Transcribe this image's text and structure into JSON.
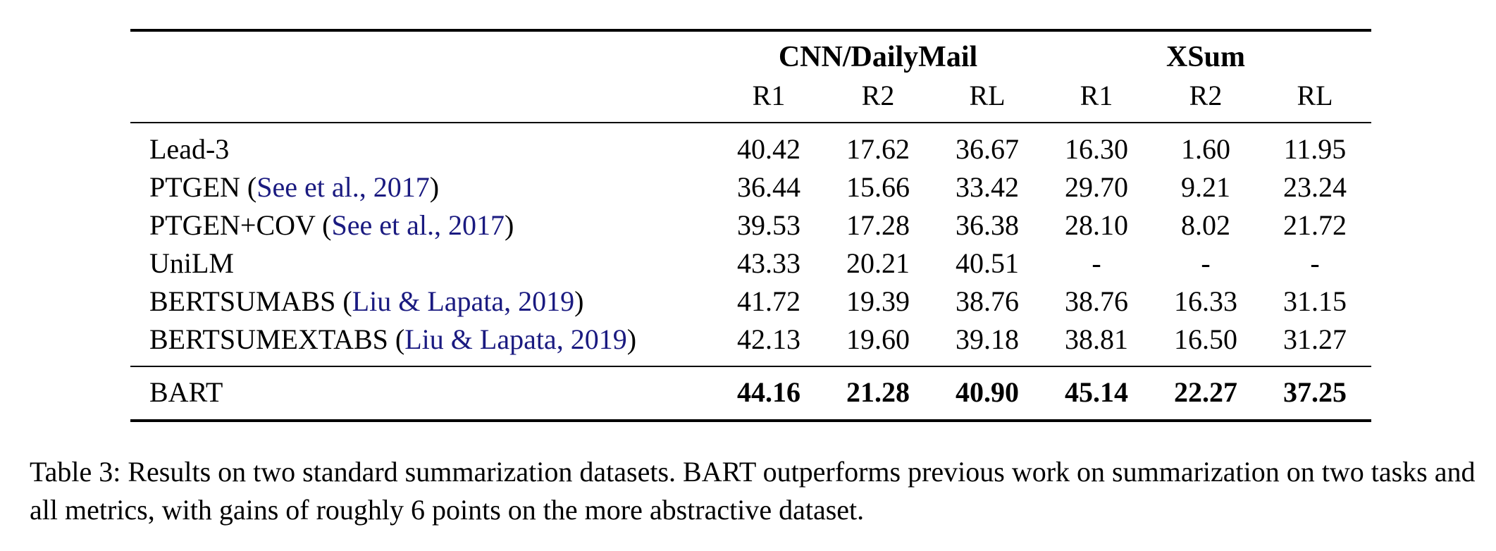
{
  "table": {
    "groups": [
      {
        "label": "CNN/DailyMail"
      },
      {
        "label": "XSum"
      }
    ],
    "columns": [
      "R1",
      "R2",
      "RL",
      "R1",
      "R2",
      "RL"
    ],
    "rows": [
      {
        "name": "Lead-3",
        "cite": "",
        "suffix": "",
        "values": [
          "40.42",
          "17.62",
          "36.67",
          "16.30",
          "1.60",
          "11.95"
        ]
      },
      {
        "name": "PTGEN (",
        "cite": "See et al., 2017",
        "suffix": ")",
        "values": [
          "36.44",
          "15.66",
          "33.42",
          "29.70",
          "9.21",
          "23.24"
        ]
      },
      {
        "name": "PTGEN+COV (",
        "cite": "See et al., 2017",
        "suffix": ")",
        "values": [
          "39.53",
          "17.28",
          "36.38",
          "28.10",
          "8.02",
          "21.72"
        ]
      },
      {
        "name": "UniLM",
        "cite": "",
        "suffix": "",
        "values": [
          "43.33",
          "20.21",
          "40.51",
          "-",
          "-",
          "-"
        ]
      },
      {
        "name": "BERTSUMABS (",
        "cite": "Liu & Lapata, 2019",
        "suffix": ")",
        "values": [
          "41.72",
          "19.39",
          "38.76",
          "38.76",
          "16.33",
          "31.15"
        ]
      },
      {
        "name": "BERTSUMEXTABS (",
        "cite": "Liu & Lapata, 2019",
        "suffix": ")",
        "values": [
          "42.13",
          "19.60",
          "39.18",
          "38.81",
          "16.50",
          "31.27"
        ]
      }
    ],
    "final_row": {
      "name": "BART",
      "values": [
        "44.16",
        "21.28",
        "40.90",
        "45.14",
        "22.27",
        "37.25"
      ]
    }
  },
  "caption": "Table 3: Results on two standard summarization datasets. BART outperforms previous work on summarization on two tasks and all metrics, with gains of roughly 6 points on the more abstractive dataset.",
  "colors": {
    "citation": "#1a1a80",
    "text": "#000000"
  }
}
